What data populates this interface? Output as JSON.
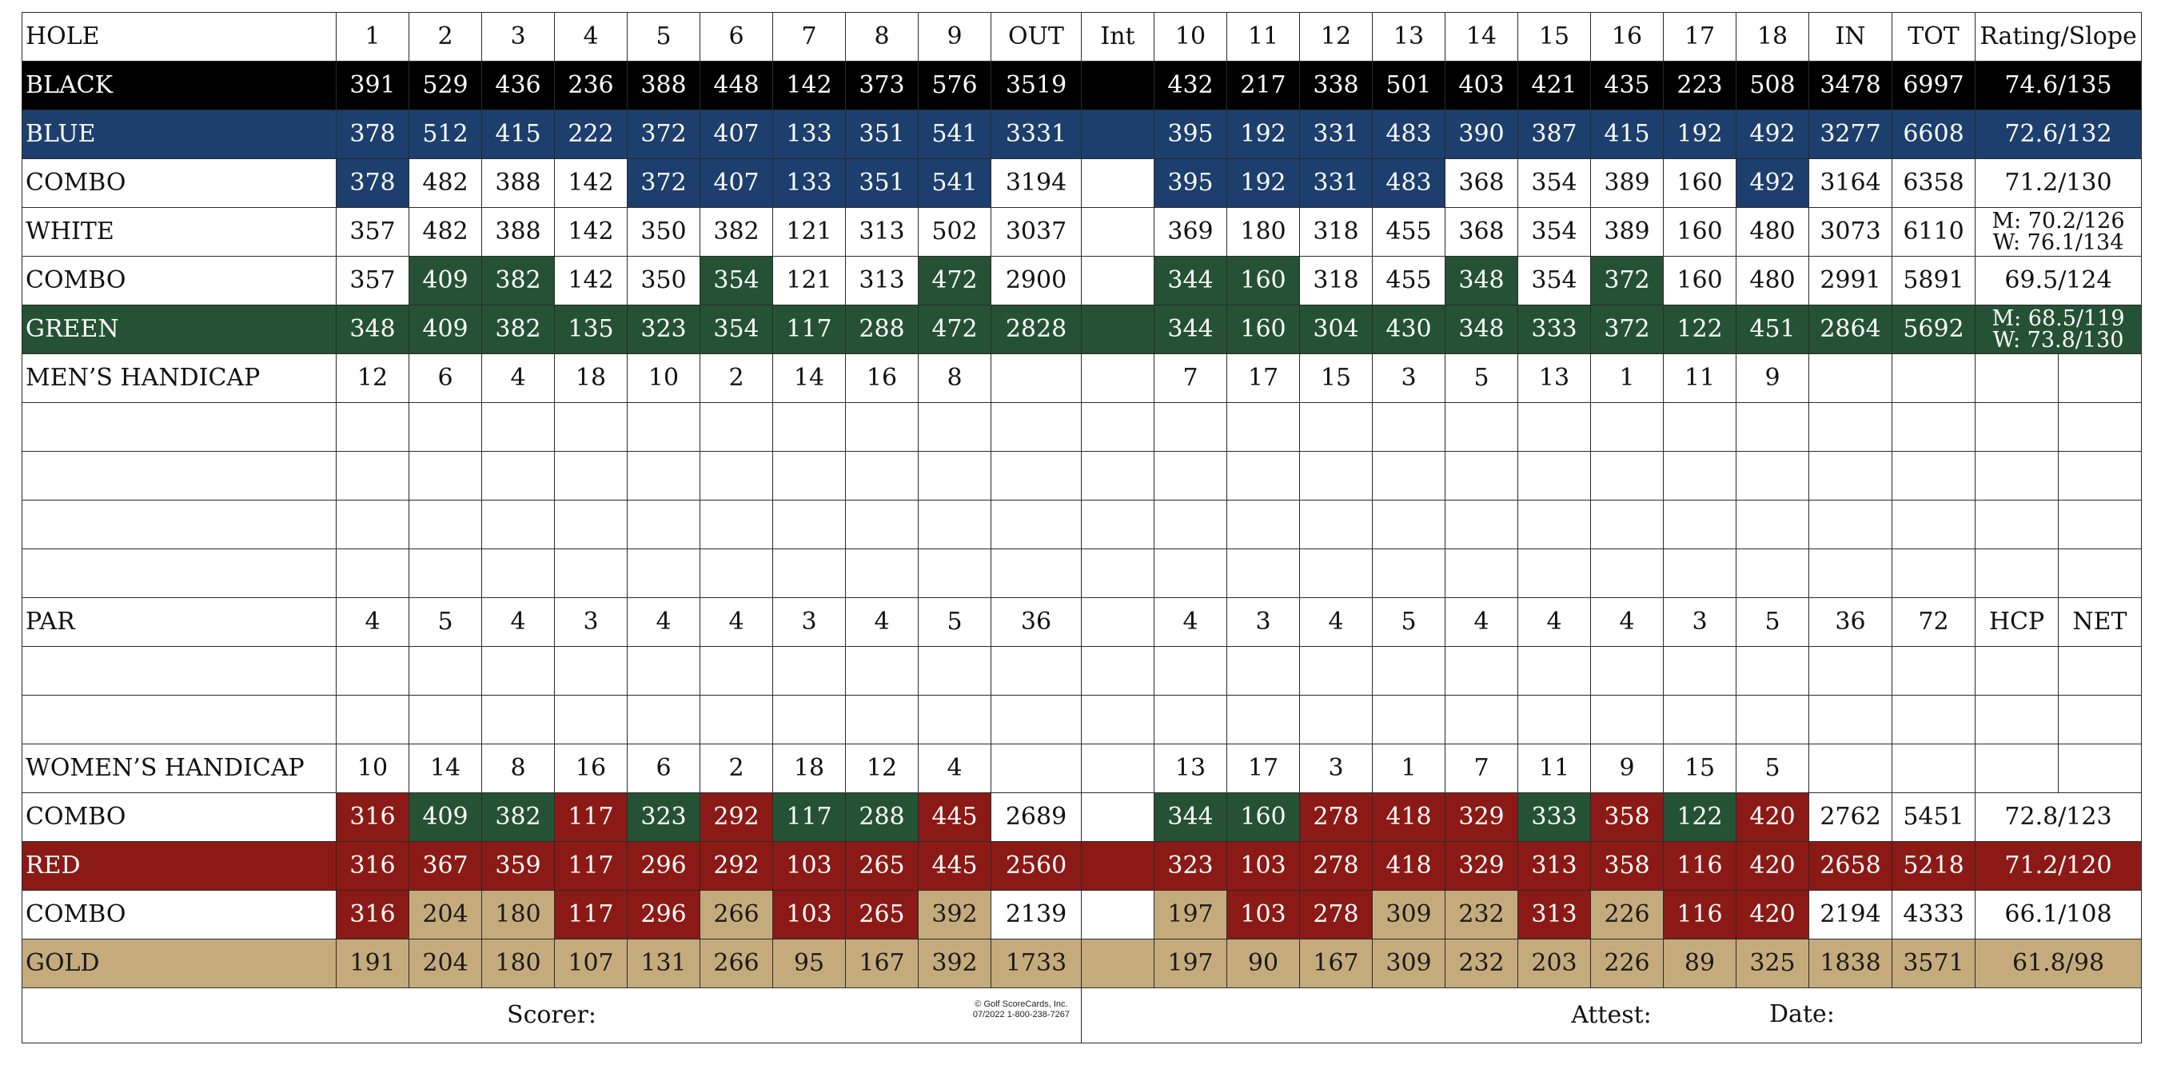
{
  "colors": {
    "black": "#000000",
    "blue": "#1d3f6e",
    "green": "#255234",
    "red": "#8b1a16",
    "gold": "#c5ab7c"
  },
  "header": [
    "HOLE",
    "1",
    "2",
    "3",
    "4",
    "5",
    "6",
    "7",
    "8",
    "9",
    "OUT",
    "Int",
    "10",
    "11",
    "12",
    "13",
    "14",
    "15",
    "16",
    "17",
    "18",
    "IN",
    "TOT",
    "Rating/Slope"
  ],
  "tee_rows": [
    {
      "name": "BLACK",
      "row_color": "black",
      "values": [
        "391",
        "529",
        "436",
        "236",
        "388",
        "448",
        "142",
        "373",
        "576",
        "3519",
        "",
        "432",
        "217",
        "338",
        "501",
        "403",
        "421",
        "435",
        "223",
        "508",
        "3478",
        "6997"
      ],
      "rating": [
        "74.6/135"
      ]
    },
    {
      "name": "BLUE",
      "row_color": "blue",
      "values": [
        "378",
        "512",
        "415",
        "222",
        "372",
        "407",
        "133",
        "351",
        "541",
        "3331",
        "",
        "395",
        "192",
        "331",
        "483",
        "390",
        "387",
        "415",
        "192",
        "492",
        "3277",
        "6608"
      ],
      "rating": [
        "72.6/132"
      ]
    },
    {
      "name": "COMBO",
      "row_color": "",
      "values": [
        "378",
        "482",
        "388",
        "142",
        "372",
        "407",
        "133",
        "351",
        "541",
        "3194",
        "",
        "395",
        "192",
        "331",
        "483",
        "368",
        "354",
        "389",
        "160",
        "492",
        "3164",
        "6358"
      ],
      "cell_colors": [
        "blue",
        "",
        "",
        "",
        "blue",
        "blue",
        "blue",
        "blue",
        "blue",
        "",
        "",
        "blue",
        "blue",
        "blue",
        "blue",
        "",
        "",
        "",
        "",
        "blue",
        "",
        ""
      ],
      "rating": [
        "71.2/130"
      ]
    },
    {
      "name": "WHITE",
      "row_color": "",
      "values": [
        "357",
        "482",
        "388",
        "142",
        "350",
        "382",
        "121",
        "313",
        "502",
        "3037",
        "",
        "369",
        "180",
        "318",
        "455",
        "368",
        "354",
        "389",
        "160",
        "480",
        "3073",
        "6110"
      ],
      "rating": [
        "M: 70.2/126",
        "W: 76.1/134"
      ]
    },
    {
      "name": "COMBO",
      "row_color": "",
      "values": [
        "357",
        "409",
        "382",
        "142",
        "350",
        "354",
        "121",
        "313",
        "472",
        "2900",
        "",
        "344",
        "160",
        "318",
        "455",
        "348",
        "354",
        "372",
        "160",
        "480",
        "2991",
        "5891"
      ],
      "cell_colors": [
        "",
        "green",
        "green",
        "",
        "",
        "green",
        "",
        "",
        "green",
        "",
        "",
        "green",
        "green",
        "",
        "",
        "green",
        "",
        "green",
        "",
        "",
        "",
        ""
      ],
      "rating": [
        "69.5/124"
      ]
    },
    {
      "name": "GREEN",
      "row_color": "green",
      "values": [
        "348",
        "409",
        "382",
        "135",
        "323",
        "354",
        "117",
        "288",
        "472",
        "2828",
        "",
        "344",
        "160",
        "304",
        "430",
        "348",
        "333",
        "372",
        "122",
        "451",
        "2864",
        "5692"
      ],
      "rating": [
        "M: 68.5/119",
        "W: 73.8/130"
      ]
    }
  ],
  "mens_handicap": {
    "name": "MEN’S HANDICAP",
    "values": [
      "12",
      "6",
      "4",
      "18",
      "10",
      "2",
      "14",
      "16",
      "8",
      "",
      "",
      "7",
      "17",
      "15",
      "3",
      "5",
      "13",
      "1",
      "11",
      "9",
      "",
      "",
      "",
      ""
    ]
  },
  "par": {
    "name": "PAR",
    "values": [
      "4",
      "5",
      "4",
      "3",
      "4",
      "4",
      "3",
      "4",
      "5",
      "36",
      "",
      "4",
      "3",
      "4",
      "5",
      "4",
      "4",
      "4",
      "3",
      "5",
      "36",
      "72",
      "HCP",
      "NET"
    ]
  },
  "womens_handicap": {
    "name": "WOMEN’S HANDICAP",
    "values": [
      "10",
      "14",
      "8",
      "16",
      "6",
      "2",
      "18",
      "12",
      "4",
      "",
      "",
      "13",
      "17",
      "3",
      "1",
      "7",
      "11",
      "9",
      "15",
      "5",
      "",
      "",
      "",
      ""
    ]
  },
  "bottom_tee_rows": [
    {
      "name": "COMBO",
      "row_color": "",
      "values": [
        "316",
        "409",
        "382",
        "117",
        "323",
        "292",
        "117",
        "288",
        "445",
        "2689",
        "",
        "344",
        "160",
        "278",
        "418",
        "329",
        "333",
        "358",
        "122",
        "420",
        "2762",
        "5451"
      ],
      "cell_colors": [
        "red",
        "green",
        "green",
        "red",
        "green",
        "red",
        "green",
        "green",
        "red",
        "",
        "",
        "green",
        "green",
        "red",
        "red",
        "red",
        "green",
        "red",
        "green",
        "red",
        "",
        ""
      ],
      "rating": [
        "72.8/123"
      ]
    },
    {
      "name": "RED",
      "row_color": "red",
      "values": [
        "316",
        "367",
        "359",
        "117",
        "296",
        "292",
        "103",
        "265",
        "445",
        "2560",
        "",
        "323",
        "103",
        "278",
        "418",
        "329",
        "313",
        "358",
        "116",
        "420",
        "2658",
        "5218"
      ],
      "rating": [
        "71.2/120"
      ]
    },
    {
      "name": "COMBO",
      "row_color": "",
      "values": [
        "316",
        "204",
        "180",
        "117",
        "296",
        "266",
        "103",
        "265",
        "392",
        "2139",
        "",
        "197",
        "103",
        "278",
        "309",
        "232",
        "313",
        "226",
        "116",
        "420",
        "2194",
        "4333"
      ],
      "cell_colors": [
        "red",
        "gold",
        "gold",
        "red",
        "red",
        "gold",
        "red",
        "red",
        "gold",
        "",
        "",
        "gold",
        "red",
        "red",
        "gold",
        "gold",
        "red",
        "gold",
        "red",
        "red",
        "",
        ""
      ],
      "rating": [
        "66.1/108"
      ]
    },
    {
      "name": "GOLD",
      "row_color": "gold",
      "values": [
        "191",
        "204",
        "180",
        "107",
        "131",
        "266",
        "95",
        "167",
        "392",
        "1733",
        "",
        "197",
        "90",
        "167",
        "309",
        "232",
        "203",
        "226",
        "89",
        "325",
        "1838",
        "3571"
      ],
      "rating": [
        "61.8/98"
      ]
    }
  ],
  "footer": {
    "scorer": "Scorer:",
    "attest": "Attest:",
    "date": "Date:",
    "copyright_line1": "©  Golf ScoreCards, Inc.",
    "copyright_line2": "07/2022  1-800-238-7267"
  }
}
